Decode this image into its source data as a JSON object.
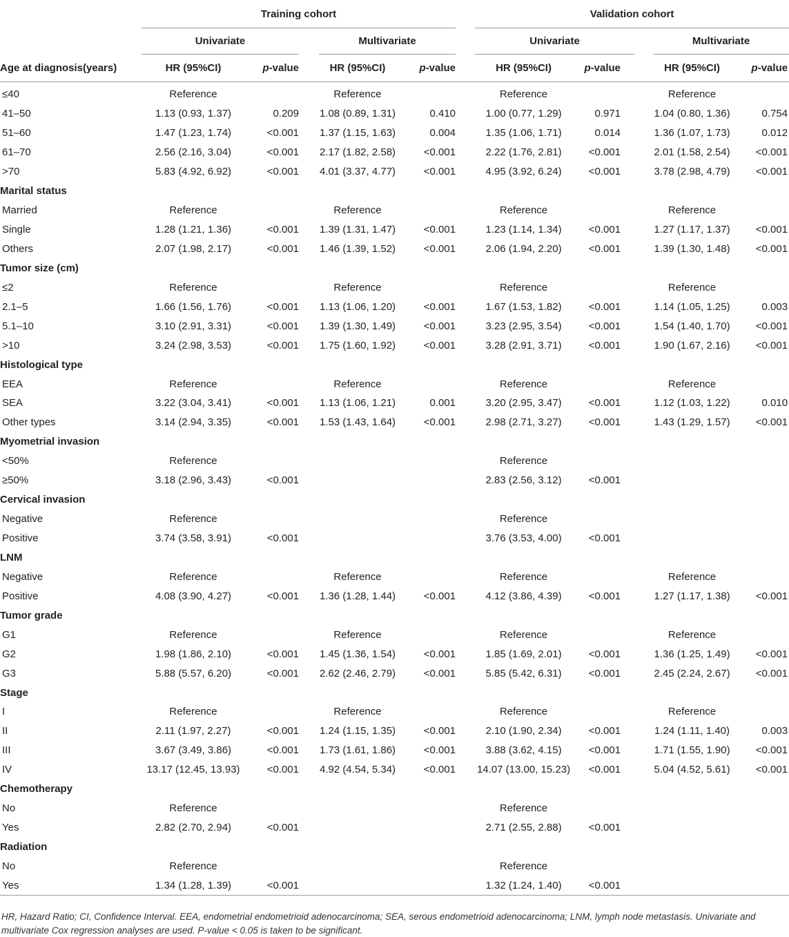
{
  "header": {
    "group_training": "Training cohort",
    "group_validation": "Validation cohort",
    "univariate": "Univariate",
    "multivariate": "Multivariate",
    "row_label_header": "Age at diagnosis(years)",
    "hr_header": "HR (95%CI)",
    "p_italic": "p",
    "p_suffix": "-value"
  },
  "rows": [
    {
      "label": "≤40",
      "section": false,
      "tu": "Reference",
      "tup": "",
      "tm": "Reference",
      "tmp": "",
      "vu": "Reference",
      "vup": "",
      "vm": "Reference",
      "vmp": ""
    },
    {
      "label": "41–50",
      "section": false,
      "tu": "1.13 (0.93, 1.37)",
      "tup": "0.209",
      "tm": "1.08 (0.89, 1.31)",
      "tmp": "0.410",
      "vu": "1.00 (0.77, 1.29)",
      "vup": "0.971",
      "vm": "1.04 (0.80, 1.36)",
      "vmp": "0.754"
    },
    {
      "label": "51–60",
      "section": false,
      "tu": "1.47 (1.23, 1.74)",
      "tup": "<0.001",
      "tm": "1.37 (1.15, 1.63)",
      "tmp": "0.004",
      "vu": "1.35 (1.06, 1.71)",
      "vup": "0.014",
      "vm": "1.36 (1.07, 1.73)",
      "vmp": "0.012"
    },
    {
      "label": "61–70",
      "section": false,
      "tu": "2.56 (2.16, 3.04)",
      "tup": "<0.001",
      "tm": "2.17 (1.82, 2.58)",
      "tmp": "<0.001",
      "vu": "2.22 (1.76, 2.81)",
      "vup": "<0.001",
      "vm": "2.01 (1.58, 2.54)",
      "vmp": "<0.001"
    },
    {
      "label": ">70",
      "section": false,
      "tu": "5.83 (4.92, 6.92)",
      "tup": "<0.001",
      "tm": "4.01 (3.37, 4.77)",
      "tmp": "<0.001",
      "vu": "4.95 (3.92, 6.24)",
      "vup": "<0.001",
      "vm": "3.78 (2.98, 4.79)",
      "vmp": "<0.001"
    },
    {
      "label": "Marital status",
      "section": true
    },
    {
      "label": "Married",
      "section": false,
      "tu": "Reference",
      "tup": "",
      "tm": "Reference",
      "tmp": "",
      "vu": "Reference",
      "vup": "",
      "vm": "Reference",
      "vmp": ""
    },
    {
      "label": "Single",
      "section": false,
      "tu": "1.28 (1.21, 1.36)",
      "tup": "<0.001",
      "tm": "1.39 (1.31, 1.47)",
      "tmp": "<0.001",
      "vu": "1.23 (1.14, 1.34)",
      "vup": "<0.001",
      "vm": "1.27 (1.17, 1.37)",
      "vmp": "<0.001"
    },
    {
      "label": "Others",
      "section": false,
      "tu": "2.07 (1.98, 2.17)",
      "tup": "<0.001",
      "tm": "1.46 (1.39, 1.52)",
      "tmp": "<0.001",
      "vu": "2.06 (1.94, 2.20)",
      "vup": "<0.001",
      "vm": "1.39 (1.30, 1.48)",
      "vmp": "<0.001"
    },
    {
      "label": "Tumor size (cm)",
      "section": true
    },
    {
      "label": "≤2",
      "section": false,
      "tu": "Reference",
      "tup": "",
      "tm": "Reference",
      "tmp": "",
      "vu": "Reference",
      "vup": "",
      "vm": "Reference",
      "vmp": ""
    },
    {
      "label": "2.1–5",
      "section": false,
      "tu": "1.66 (1.56, 1.76)",
      "tup": "<0.001",
      "tm": "1.13 (1.06, 1.20)",
      "tmp": "<0.001",
      "vu": "1.67 (1.53, 1.82)",
      "vup": "<0.001",
      "vm": "1.14 (1.05, 1.25)",
      "vmp": "0.003"
    },
    {
      "label": "5.1–10",
      "section": false,
      "tu": "3.10 (2.91, 3.31)",
      "tup": "<0.001",
      "tm": "1.39 (1.30, 1.49)",
      "tmp": "<0.001",
      "vu": "3.23 (2.95, 3.54)",
      "vup": "<0.001",
      "vm": "1.54 (1.40, 1.70)",
      "vmp": "<0.001"
    },
    {
      "label": ">10",
      "section": false,
      "tu": "3.24 (2.98, 3.53)",
      "tup": "<0.001",
      "tm": "1.75 (1.60, 1.92)",
      "tmp": "<0.001",
      "vu": "3.28 (2.91, 3.71)",
      "vup": "<0.001",
      "vm": "1.90 (1.67, 2.16)",
      "vmp": "<0.001"
    },
    {
      "label": "Histological type",
      "section": true
    },
    {
      "label": "EEA",
      "section": false,
      "tu": "Reference",
      "tup": "",
      "tm": "Reference",
      "tmp": "",
      "vu": "Reference",
      "vup": "",
      "vm": "Reference",
      "vmp": ""
    },
    {
      "label": "SEA",
      "section": false,
      "tu": "3.22 (3.04, 3.41)",
      "tup": "<0.001",
      "tm": "1.13 (1.06, 1.21)",
      "tmp": "0.001",
      "vu": "3.20 (2.95, 3.47)",
      "vup": "<0.001",
      "vm": "1.12 (1.03, 1.22)",
      "vmp": "0.010"
    },
    {
      "label": "Other types",
      "section": false,
      "tu": "3.14 (2.94, 3.35)",
      "tup": "<0.001",
      "tm": "1.53 (1.43, 1.64)",
      "tmp": "<0.001",
      "vu": "2.98 (2.71, 3.27)",
      "vup": "<0.001",
      "vm": "1.43 (1.29, 1.57)",
      "vmp": "<0.001"
    },
    {
      "label": "Myometrial invasion",
      "section": true
    },
    {
      "label": "<50%",
      "section": false,
      "tu": "Reference",
      "tup": "",
      "tm": "",
      "tmp": "",
      "vu": "Reference",
      "vup": "",
      "vm": "",
      "vmp": ""
    },
    {
      "label": "≥50%",
      "section": false,
      "tu": "3.18 (2.96, 3.43)",
      "tup": "<0.001",
      "tm": "",
      "tmp": "",
      "vu": "2.83 (2.56, 3.12)",
      "vup": "<0.001",
      "vm": "",
      "vmp": ""
    },
    {
      "label": "Cervical invasion",
      "section": true
    },
    {
      "label": "Negative",
      "section": false,
      "tu": "Reference",
      "tup": "",
      "tm": "",
      "tmp": "",
      "vu": "Reference",
      "vup": "",
      "vm": "",
      "vmp": ""
    },
    {
      "label": "Positive",
      "section": false,
      "tu": "3.74 (3.58, 3.91)",
      "tup": "<0.001",
      "tm": "",
      "tmp": "",
      "vu": "3.76 (3.53, 4.00)",
      "vup": "<0.001",
      "vm": "",
      "vmp": ""
    },
    {
      "label": "LNM",
      "section": true
    },
    {
      "label": "Negative",
      "section": false,
      "tu": "Reference",
      "tup": "",
      "tm": "Reference",
      "tmp": "",
      "vu": "Reference",
      "vup": "",
      "vm": "Reference",
      "vmp": ""
    },
    {
      "label": "Positive",
      "section": false,
      "tu": "4.08 (3.90, 4.27)",
      "tup": "<0.001",
      "tm": "1.36 (1.28, 1.44)",
      "tmp": "<0.001",
      "vu": "4.12 (3.86, 4.39)",
      "vup": "<0.001",
      "vm": "1.27 (1.17, 1.38)",
      "vmp": "<0.001"
    },
    {
      "label": "Tumor grade",
      "section": true
    },
    {
      "label": "G1",
      "section": false,
      "tu": "Reference",
      "tup": "",
      "tm": "Reference",
      "tmp": "",
      "vu": "Reference",
      "vup": "",
      "vm": "Reference",
      "vmp": ""
    },
    {
      "label": "G2",
      "section": false,
      "tu": "1.98 (1.86, 2.10)",
      "tup": "<0.001",
      "tm": "1.45 (1.36, 1.54)",
      "tmp": "<0.001",
      "vu": "1.85 (1.69, 2.01)",
      "vup": "<0.001",
      "vm": "1.36 (1.25, 1.49)",
      "vmp": "<0.001"
    },
    {
      "label": "G3",
      "section": false,
      "tu": "5.88 (5.57, 6.20)",
      "tup": "<0.001",
      "tm": "2.62 (2.46, 2.79)",
      "tmp": "<0.001",
      "vu": "5.85 (5.42, 6.31)",
      "vup": "<0.001",
      "vm": "2.45 (2.24, 2.67)",
      "vmp": "<0.001"
    },
    {
      "label": "Stage",
      "section": true
    },
    {
      "label": "I",
      "section": false,
      "tu": "Reference",
      "tup": "",
      "tm": "Reference",
      "tmp": "",
      "vu": "Reference",
      "vup": "",
      "vm": "Reference",
      "vmp": ""
    },
    {
      "label": "II",
      "section": false,
      "tu": "2.11 (1.97, 2.27)",
      "tup": "<0.001",
      "tm": "1.24 (1.15, 1.35)",
      "tmp": "<0.001",
      "vu": "2.10 (1.90, 2.34)",
      "vup": "<0.001",
      "vm": "1.24 (1.11, 1.40)",
      "vmp": "0.003"
    },
    {
      "label": "III",
      "section": false,
      "tu": "3.67 (3.49, 3.86)",
      "tup": "<0.001",
      "tm": "1.73 (1.61, 1.86)",
      "tmp": "<0.001",
      "vu": "3.88 (3.62, 4.15)",
      "vup": "<0.001",
      "vm": "1.71 (1.55, 1.90)",
      "vmp": "<0.001"
    },
    {
      "label": "IV",
      "section": false,
      "tu": "13.17 (12.45, 13.93)",
      "tup": "<0.001",
      "tm": "4.92 (4.54, 5.34)",
      "tmp": "<0.001",
      "vu": "14.07 (13.00, 15.23)",
      "vup": "<0.001",
      "vm": "5.04 (4.52, 5.61)",
      "vmp": "<0.001"
    },
    {
      "label": "Chemotherapy",
      "section": true
    },
    {
      "label": "No",
      "section": false,
      "tu": "Reference",
      "tup": "",
      "tm": "",
      "tmp": "",
      "vu": "Reference",
      "vup": "",
      "vm": "",
      "vmp": ""
    },
    {
      "label": "Yes",
      "section": false,
      "tu": "2.82 (2.70, 2.94)",
      "tup": "<0.001",
      "tm": "",
      "tmp": "",
      "vu": "2.71 (2.55, 2.88)",
      "vup": "<0.001",
      "vm": "",
      "vmp": ""
    },
    {
      "label": "Radiation",
      "section": true
    },
    {
      "label": "No",
      "section": false,
      "tu": "Reference",
      "tup": "",
      "tm": "",
      "tmp": "",
      "vu": "Reference",
      "vup": "",
      "vm": "",
      "vmp": ""
    },
    {
      "label": "Yes",
      "section": false,
      "tu": "1.34 (1.28, 1.39)",
      "tup": "<0.001",
      "tm": "",
      "tmp": "",
      "vu": "1.32 (1.24, 1.40)",
      "vup": "<0.001",
      "vm": "",
      "vmp": ""
    }
  ],
  "footnote": "HR, Hazard Ratio; CI, Confidence Interval. EEA, endometrial endometrioid adenocarcinoma; SEA, serous endometrioid adenocarcinoma; LNM, lymph node metastasis. Univariate and multivariate Cox regression analyses are used. P-value < 0.05 is taken to be significant."
}
